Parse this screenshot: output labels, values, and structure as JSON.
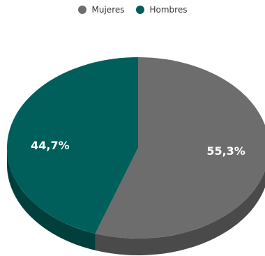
{
  "chart_data": {
    "type": "pie",
    "title": "",
    "legend_position": "top",
    "three_d": true,
    "slices": [
      {
        "name": "Mujeres",
        "value": 55.3,
        "label": "55,3%",
        "color": "#6d6d6d",
        "side_color": "#4a4a4a"
      },
      {
        "name": "Hombres",
        "value": 44.7,
        "label": "44,7%",
        "color": "#005f5b",
        "side_color": "#003f3c"
      }
    ]
  }
}
